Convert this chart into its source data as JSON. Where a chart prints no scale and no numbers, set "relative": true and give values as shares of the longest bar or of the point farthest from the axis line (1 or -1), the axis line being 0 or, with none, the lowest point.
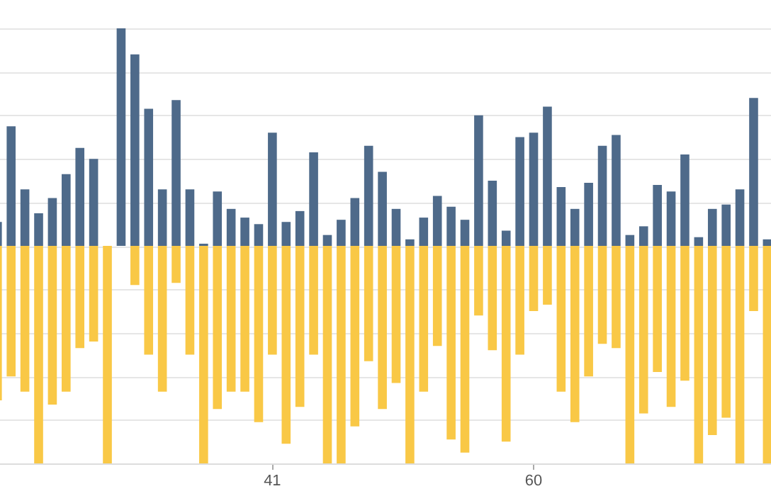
{
  "chart_data": {
    "type": "bar",
    "relative": true,
    "stacked": true,
    "grid": "y",
    "legend": false,
    "categories": [
      null,
      null,
      null,
      null,
      null,
      null,
      null,
      null,
      null,
      null,
      null,
      null,
      null,
      null,
      null,
      null,
      null,
      null,
      null,
      null,
      "41",
      null,
      null,
      null,
      null,
      null,
      null,
      null,
      null,
      null,
      null,
      null,
      null,
      null,
      null,
      null,
      null,
      null,
      null,
      "60",
      null,
      null,
      null,
      null,
      null,
      null,
      null,
      null,
      null,
      null,
      null,
      null,
      null,
      null,
      null,
      null,
      null
    ],
    "series": [
      {
        "color": "#4e6a8a",
        "values": [
          0.11,
          0.55,
          0.26,
          0.15,
          0.22,
          0.33,
          0.45,
          0.4,
          0,
          1.0,
          0.88,
          0.63,
          0.26,
          0.67,
          0.26,
          0.01,
          0.25,
          0.17,
          0.13,
          0.1,
          0.52,
          0.11,
          0.16,
          0.43,
          0.05,
          0.12,
          0.22,
          0.46,
          0.34,
          0.17,
          0.03,
          0.13,
          0.23,
          0.18,
          0.12,
          0.6,
          0.3,
          0.07,
          0.5,
          0.52,
          0.64,
          0.27,
          0.17,
          0.29,
          0.46,
          0.51,
          0.05,
          0.09,
          0.28,
          0.25,
          0.42,
          0.04,
          0.17,
          0.19,
          0.26,
          0.68,
          0.03
        ]
      },
      {
        "color": "#f9c846",
        "values": [
          -0.71,
          -0.6,
          -0.67,
          -1.0,
          -0.73,
          -0.67,
          -0.47,
          -0.44,
          -1.0,
          0,
          -0.18,
          -0.5,
          -0.67,
          -0.17,
          -0.5,
          -1.0,
          -0.75,
          -0.67,
          -0.67,
          -0.81,
          -0.5,
          -0.91,
          -0.74,
          -0.5,
          -1.0,
          -1.0,
          -0.83,
          -0.53,
          -0.75,
          -0.63,
          -1.0,
          -0.67,
          -0.46,
          -0.89,
          -0.95,
          -0.32,
          -0.48,
          -0.9,
          -0.5,
          -0.3,
          -0.27,
          -0.67,
          -0.81,
          -0.6,
          -0.45,
          -0.47,
          -1.0,
          -0.77,
          -0.58,
          -0.74,
          -0.62,
          -1.0,
          -0.87,
          -0.79,
          -1.0,
          -0.3,
          -1.0
        ]
      }
    ]
  }
}
